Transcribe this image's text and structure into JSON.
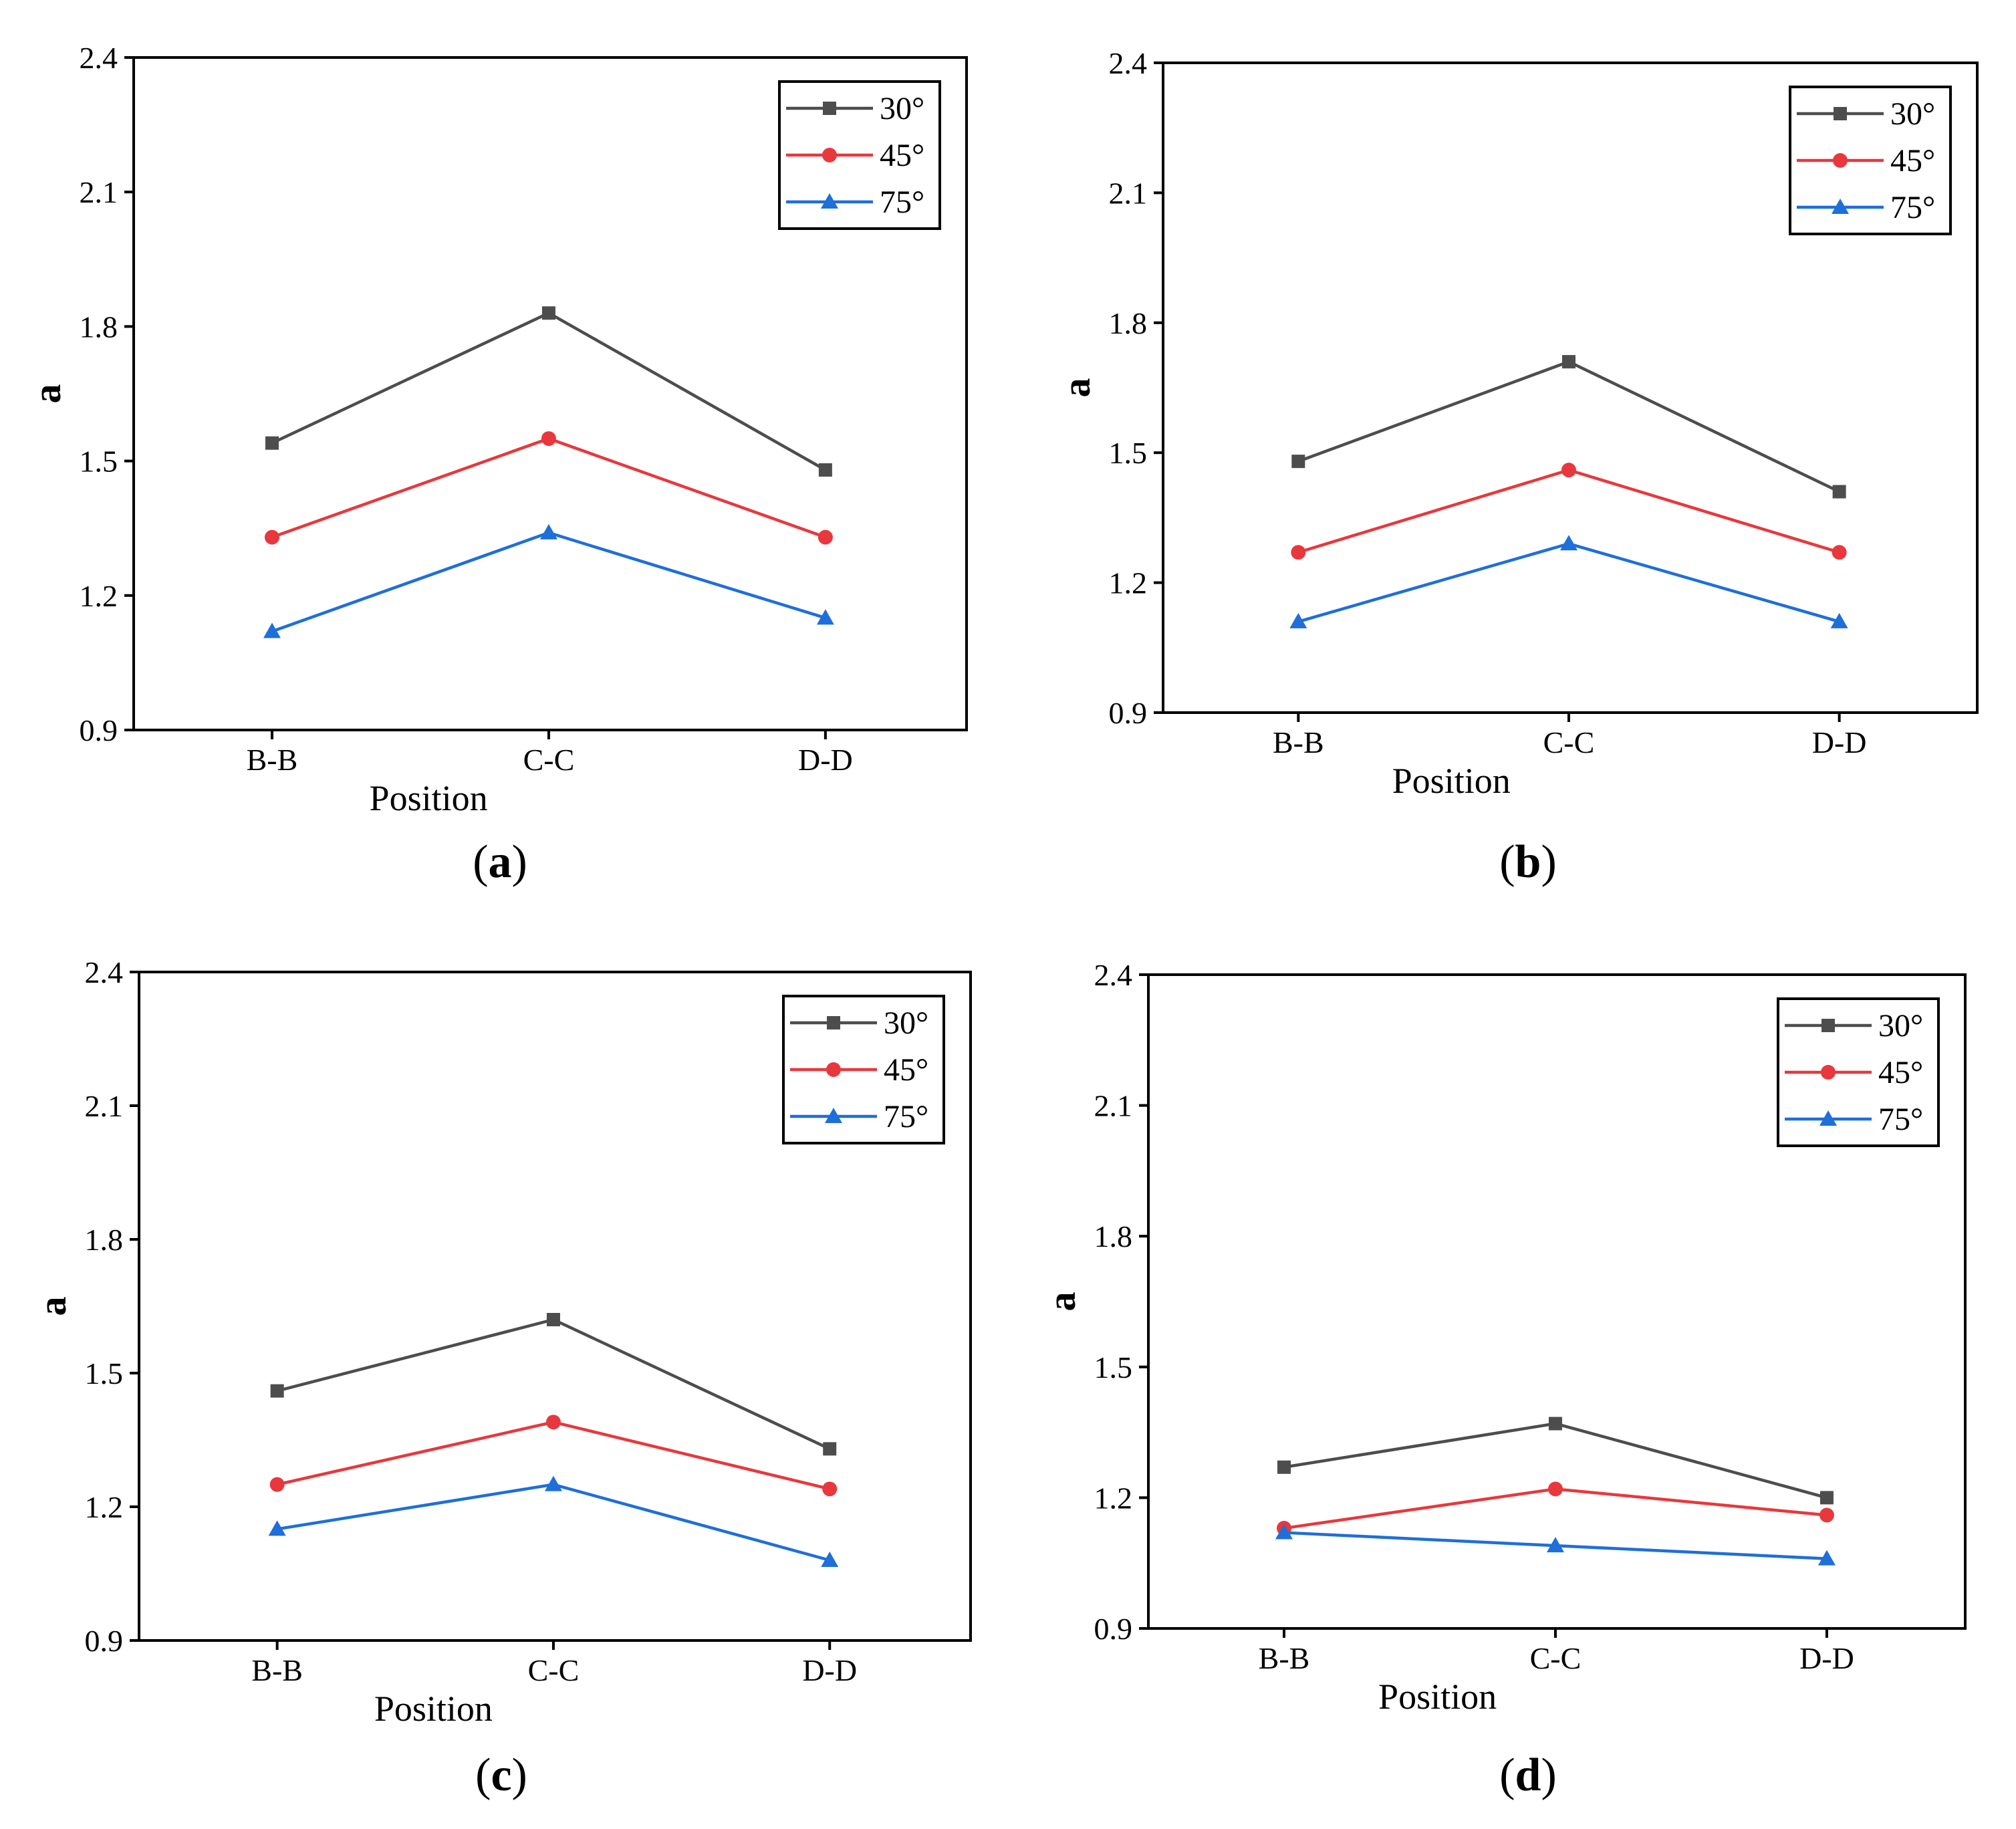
{
  "colors": {
    "axis": "#000000",
    "s30": "#4d4d4d",
    "s45": "#e8383d",
    "s75": "#1e6fd9"
  },
  "chart_data": [
    {
      "panel_label": "a",
      "type": "line",
      "title": "",
      "xlabel": "Position",
      "ylabel": "a",
      "categories": [
        "B-B",
        "C-C",
        "D-D"
      ],
      "yticks": [
        "0.9",
        "1.2",
        "1.5",
        "1.8",
        "2.1",
        "2.4"
      ],
      "ylim": [
        0.9,
        2.4
      ],
      "legend_position": "top-right",
      "series": [
        {
          "name": "30°",
          "marker": "square",
          "color": "#4d4d4d",
          "values": [
            1.54,
            1.83,
            1.48
          ]
        },
        {
          "name": "45°",
          "marker": "circle",
          "color": "#e8383d",
          "values": [
            1.33,
            1.55,
            1.33
          ]
        },
        {
          "name": "75°",
          "marker": "triangle",
          "color": "#1e6fd9",
          "values": [
            1.12,
            1.34,
            1.15
          ]
        }
      ]
    },
    {
      "panel_label": "b",
      "type": "line",
      "title": "",
      "xlabel": "Position",
      "ylabel": "a",
      "categories": [
        "B-B",
        "C-C",
        "D-D"
      ],
      "yticks": [
        "0.9",
        "1.2",
        "1.5",
        "1.8",
        "2.1",
        "2.4"
      ],
      "ylim": [
        0.9,
        2.4
      ],
      "legend_position": "top-right",
      "series": [
        {
          "name": "30°",
          "marker": "square",
          "color": "#4d4d4d",
          "values": [
            1.48,
            1.71,
            1.41
          ]
        },
        {
          "name": "45°",
          "marker": "circle",
          "color": "#e8383d",
          "values": [
            1.27,
            1.46,
            1.27
          ]
        },
        {
          "name": "75°",
          "marker": "triangle",
          "color": "#1e6fd9",
          "values": [
            1.11,
            1.29,
            1.11
          ]
        }
      ]
    },
    {
      "panel_label": "c",
      "type": "line",
      "title": "",
      "xlabel": "Position",
      "ylabel": "a",
      "categories": [
        "B-B",
        "C-C",
        "D-D"
      ],
      "yticks": [
        "0.9",
        "1.2",
        "1.5",
        "1.8",
        "2.1",
        "2.4"
      ],
      "ylim": [
        0.9,
        2.4
      ],
      "legend_position": "top-right",
      "series": [
        {
          "name": "30°",
          "marker": "square",
          "color": "#4d4d4d",
          "values": [
            1.46,
            1.62,
            1.33
          ]
        },
        {
          "name": "45°",
          "marker": "circle",
          "color": "#e8383d",
          "values": [
            1.25,
            1.39,
            1.24
          ]
        },
        {
          "name": "75°",
          "marker": "triangle",
          "color": "#1e6fd9",
          "values": [
            1.15,
            1.25,
            1.08
          ]
        }
      ]
    },
    {
      "panel_label": "d",
      "type": "line",
      "title": "",
      "xlabel": "Position",
      "ylabel": "a",
      "categories": [
        "B-B",
        "C-C",
        "D-D"
      ],
      "yticks": [
        "0.9",
        "1.2",
        "1.5",
        "1.8",
        "2.1",
        "2.4"
      ],
      "ylim": [
        0.9,
        2.4
      ],
      "legend_position": "top-right",
      "series": [
        {
          "name": "30°",
          "marker": "square",
          "color": "#4d4d4d",
          "values": [
            1.27,
            1.37,
            1.2
          ]
        },
        {
          "name": "45°",
          "marker": "circle",
          "color": "#e8383d",
          "values": [
            1.13,
            1.22,
            1.16
          ]
        },
        {
          "name": "75°",
          "marker": "triangle",
          "color": "#1e6fd9",
          "values": [
            1.12,
            1.09,
            1.06
          ]
        }
      ]
    }
  ]
}
